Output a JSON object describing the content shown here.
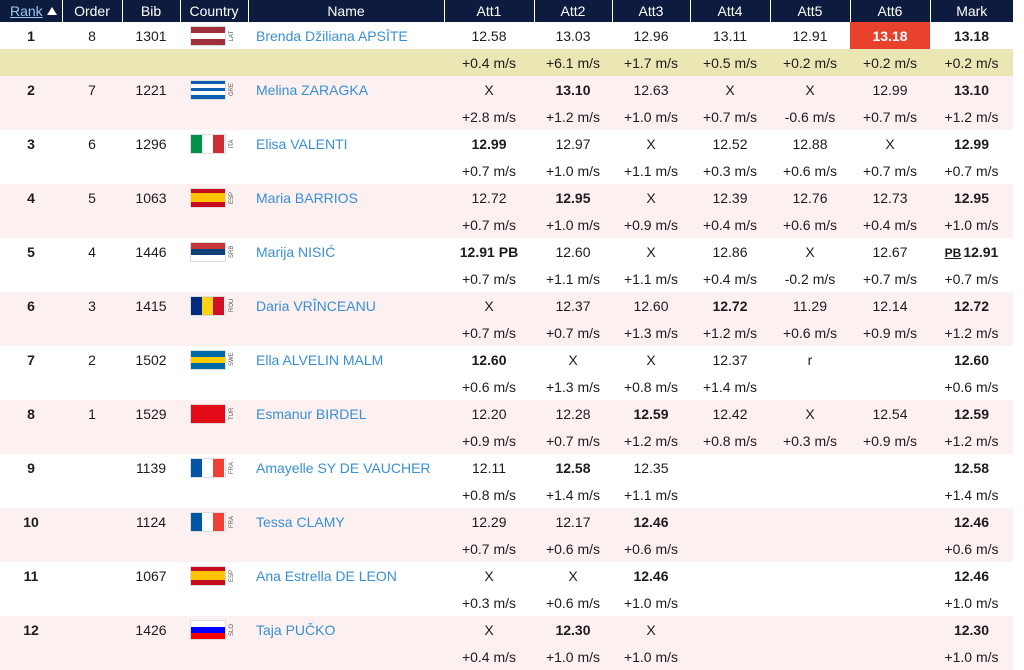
{
  "table": {
    "headers": [
      "Rank",
      "Order",
      "Bib",
      "Country",
      "Name",
      "Att1",
      "Att2",
      "Att3",
      "Att4",
      "Att5",
      "Att6",
      "Mark"
    ],
    "sorted_by": 0,
    "highlight_wind_row": 0,
    "rows": [
      {
        "rank": 1,
        "order": 8,
        "bib": 1301,
        "country": "LAT",
        "flag": {
          "dir": "h",
          "stripes": [
            "#9e3039",
            "#ffffff",
            "#9e3039"
          ]
        },
        "name": "Brenda Džiliana APSĪTE",
        "attempts": [
          {
            "mark": "12.58",
            "wind": "+0.4 m/s"
          },
          {
            "mark": "13.03",
            "wind": "+6.1 m/s"
          },
          {
            "mark": "12.96",
            "wind": "+1.7 m/s"
          },
          {
            "mark": "13.11",
            "wind": "+0.5 m/s"
          },
          {
            "mark": "12.91",
            "wind": "+0.2 m/s"
          },
          {
            "mark": "13.18",
            "wind": "+0.2 m/s",
            "best": true,
            "highlight": true
          }
        ],
        "result": {
          "mark": "13.18",
          "wind": "+0.2 m/s"
        }
      },
      {
        "rank": 2,
        "order": 7,
        "bib": 1221,
        "country": "GRE",
        "flag": {
          "dir": "h",
          "stripes": [
            "#0d5eaf",
            "#ffffff",
            "#0d5eaf",
            "#ffffff",
            "#0d5eaf"
          ]
        },
        "name": "Melina ZARAGKA",
        "attempts": [
          {
            "mark": "X",
            "wind": "+2.8 m/s"
          },
          {
            "mark": "13.10",
            "wind": "+1.2 m/s",
            "best": true
          },
          {
            "mark": "12.63",
            "wind": "+1.0 m/s"
          },
          {
            "mark": "X",
            "wind": "+0.7 m/s"
          },
          {
            "mark": "X",
            "wind": "-0.6 m/s"
          },
          {
            "mark": "12.99",
            "wind": "+0.7 m/s"
          }
        ],
        "result": {
          "mark": "13.10",
          "wind": "+1.2 m/s"
        }
      },
      {
        "rank": 3,
        "order": 6,
        "bib": 1296,
        "country": "ITA",
        "flag": {
          "dir": "v",
          "stripes": [
            "#009246",
            "#ffffff",
            "#ce2b37"
          ]
        },
        "name": "Elisa VALENTI",
        "attempts": [
          {
            "mark": "12.99",
            "wind": "+0.7 m/s",
            "best": true
          },
          {
            "mark": "12.97",
            "wind": "+1.0 m/s"
          },
          {
            "mark": "X",
            "wind": "+1.1 m/s"
          },
          {
            "mark": "12.52",
            "wind": "+0.3 m/s"
          },
          {
            "mark": "12.88",
            "wind": "+0.6 m/s"
          },
          {
            "mark": "X",
            "wind": "+0.7 m/s"
          }
        ],
        "result": {
          "mark": "12.99",
          "wind": "+0.7 m/s"
        }
      },
      {
        "rank": 4,
        "order": 5,
        "bib": 1063,
        "country": "ESP",
        "flag": {
          "dir": "h",
          "stripes": [
            "#c60b1e",
            "#ffc400",
            "#ffc400",
            "#c60b1e"
          ]
        },
        "name": "Maria BARRIOS",
        "attempts": [
          {
            "mark": "12.72",
            "wind": "+0.7 m/s"
          },
          {
            "mark": "12.95",
            "wind": "+1.0 m/s",
            "best": true
          },
          {
            "mark": "X",
            "wind": "+0.9 m/s"
          },
          {
            "mark": "12.39",
            "wind": "+0.4 m/s"
          },
          {
            "mark": "12.76",
            "wind": "+0.6 m/s"
          },
          {
            "mark": "12.73",
            "wind": "+0.4 m/s"
          }
        ],
        "result": {
          "mark": "12.95",
          "wind": "+1.0 m/s"
        }
      },
      {
        "rank": 5,
        "order": 4,
        "bib": 1446,
        "country": "SRB",
        "flag": {
          "dir": "h",
          "stripes": [
            "#c6363c",
            "#0c4076",
            "#ffffff"
          ]
        },
        "name": "Marija NISIĆ",
        "attempts": [
          {
            "mark": "12.91",
            "note": "PB",
            "wind": "+0.7 m/s",
            "best": true
          },
          {
            "mark": "12.60",
            "wind": "+1.1 m/s"
          },
          {
            "mark": "X",
            "wind": "+1.1 m/s"
          },
          {
            "mark": "12.86",
            "wind": "+0.4 m/s"
          },
          {
            "mark": "X",
            "wind": "-0.2 m/s"
          },
          {
            "mark": "12.67",
            "wind": "+0.7 m/s"
          }
        ],
        "result": {
          "note": "PB",
          "mark": "12.91",
          "wind": "+0.7 m/s"
        }
      },
      {
        "rank": 6,
        "order": 3,
        "bib": 1415,
        "country": "ROU",
        "flag": {
          "dir": "v",
          "stripes": [
            "#002b7f",
            "#fcd116",
            "#ce1126"
          ]
        },
        "name": "Daria VRÎNCEANU",
        "attempts": [
          {
            "mark": "X",
            "wind": "+0.7 m/s"
          },
          {
            "mark": "12.37",
            "wind": "+0.7 m/s"
          },
          {
            "mark": "12.60",
            "wind": "+1.3 m/s"
          },
          {
            "mark": "12.72",
            "wind": "+1.2 m/s",
            "best": true
          },
          {
            "mark": "11.29",
            "wind": "+0.6 m/s"
          },
          {
            "mark": "12.14",
            "wind": "+0.9 m/s"
          }
        ],
        "result": {
          "mark": "12.72",
          "wind": "+1.2 m/s"
        }
      },
      {
        "rank": 7,
        "order": 2,
        "bib": 1502,
        "country": "SWE",
        "flag": {
          "dir": "h",
          "stripes": [
            "#006aa7",
            "#fecc00",
            "#006aa7"
          ]
        },
        "name": "Ella ALVELIN MALM",
        "attempts": [
          {
            "mark": "12.60",
            "wind": "+0.6 m/s",
            "best": true
          },
          {
            "mark": "X",
            "wind": "+1.3 m/s"
          },
          {
            "mark": "X",
            "wind": "+0.8 m/s"
          },
          {
            "mark": "12.37",
            "wind": "+1.4 m/s"
          },
          {
            "mark": "r"
          }
        ],
        "result": {
          "mark": "12.60",
          "wind": "+0.6 m/s"
        }
      },
      {
        "rank": 8,
        "order": 1,
        "bib": 1529,
        "country": "TUR",
        "flag": {
          "dir": "h",
          "stripes": [
            "#e30a17"
          ]
        },
        "name": "Esmanur BIRDEL",
        "attempts": [
          {
            "mark": "12.20",
            "wind": "+0.9 m/s"
          },
          {
            "mark": "12.28",
            "wind": "+0.7 m/s"
          },
          {
            "mark": "12.59",
            "wind": "+1.2 m/s",
            "best": true
          },
          {
            "mark": "12.42",
            "wind": "+0.8 m/s"
          },
          {
            "mark": "X",
            "wind": "+0.3 m/s"
          },
          {
            "mark": "12.54",
            "wind": "+0.9 m/s"
          }
        ],
        "result": {
          "mark": "12.59",
          "wind": "+1.2 m/s"
        }
      },
      {
        "rank": 9,
        "order": null,
        "bib": 1139,
        "country": "FRA",
        "flag": {
          "dir": "v",
          "stripes": [
            "#0055a4",
            "#ffffff",
            "#ef4135"
          ]
        },
        "name": "Amayelle SY DE VAUCHER",
        "attempts": [
          {
            "mark": "12.11",
            "wind": "+0.8 m/s"
          },
          {
            "mark": "12.58",
            "wind": "+1.4 m/s",
            "best": true
          },
          {
            "mark": "12.35",
            "wind": "+1.1 m/s"
          }
        ],
        "result": {
          "mark": "12.58",
          "wind": "+1.4 m/s"
        }
      },
      {
        "rank": 10,
        "order": null,
        "bib": 1124,
        "country": "FRA",
        "flag": {
          "dir": "v",
          "stripes": [
            "#0055a4",
            "#ffffff",
            "#ef4135"
          ]
        },
        "name": "Tessa CLAMY",
        "attempts": [
          {
            "mark": "12.29",
            "wind": "+0.7 m/s"
          },
          {
            "mark": "12.17",
            "wind": "+0.6 m/s"
          },
          {
            "mark": "12.46",
            "wind": "+0.6 m/s",
            "best": true
          }
        ],
        "result": {
          "mark": "12.46",
          "wind": "+0.6 m/s"
        }
      },
      {
        "rank": 11,
        "order": null,
        "bib": 1067,
        "country": "ESP",
        "flag": {
          "dir": "h",
          "stripes": [
            "#c60b1e",
            "#ffc400",
            "#ffc400",
            "#c60b1e"
          ]
        },
        "name": "Ana Estrella DE LEON",
        "attempts": [
          {
            "mark": "X",
            "wind": "+0.3 m/s"
          },
          {
            "mark": "X",
            "wind": "+0.6 m/s"
          },
          {
            "mark": "12.46",
            "wind": "+1.0 m/s",
            "best": true
          }
        ],
        "result": {
          "mark": "12.46",
          "wind": "+1.0 m/s"
        }
      },
      {
        "rank": 12,
        "order": null,
        "bib": 1426,
        "country": "SLO",
        "flag": {
          "dir": "h",
          "stripes": [
            "#ffffff",
            "#0000ff",
            "#ff0000"
          ]
        },
        "name": "Taja PUČKO",
        "attempts": [
          {
            "mark": "X",
            "wind": "+0.4 m/s"
          },
          {
            "mark": "12.30",
            "wind": "+1.0 m/s",
            "best": true
          },
          {
            "mark": "X",
            "wind": "+1.0 m/s"
          }
        ],
        "result": {
          "mark": "12.30",
          "wind": "+1.0 m/s"
        }
      }
    ]
  }
}
